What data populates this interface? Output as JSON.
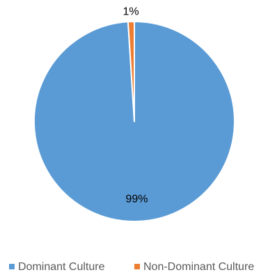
{
  "chart_data": {
    "type": "pie",
    "title": "",
    "categories": [
      "Dominant Culture",
      "Non-Dominant Culture"
    ],
    "values": [
      99,
      1
    ],
    "data_labels": [
      "99%",
      "1%"
    ],
    "colors": [
      "#5B9BD5",
      "#ED7D31"
    ],
    "start_angle_deg": 0,
    "direction": "clockwise",
    "slice_separator_color": "#ffffff",
    "legend": {
      "position": "bottom",
      "items": [
        {
          "label": "Dominant Culture",
          "color": "#5B9BD5"
        },
        {
          "label": "Non-Dominant Culture",
          "color": "#ED7D31"
        }
      ]
    }
  }
}
